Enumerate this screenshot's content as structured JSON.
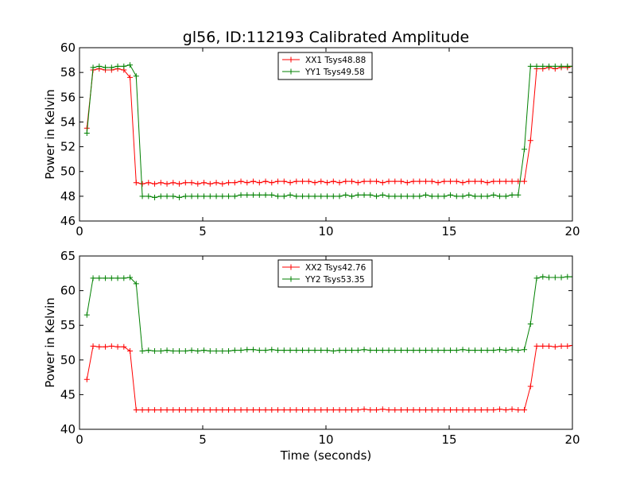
{
  "title": "gl56, ID:112193 Calibrated Amplitude",
  "colors": {
    "red": "#ff0000",
    "green": "#008000"
  },
  "chart_data": [
    {
      "type": "line",
      "xlabel": "",
      "ylabel": "Power in Kelvin",
      "xlim": [
        0,
        20
      ],
      "ylim": [
        46,
        60
      ],
      "xticks": [
        0,
        5,
        10,
        15,
        20
      ],
      "yticks": [
        46,
        48,
        50,
        52,
        54,
        56,
        58,
        60
      ],
      "grid": false,
      "legend_position": "top-center",
      "series": [
        {
          "name": "XX1 Tsys48.88",
          "color": "#ff0000",
          "x": [
            0.3,
            0.55,
            0.8,
            1.05,
            1.3,
            1.55,
            1.8,
            2.05,
            2.3,
            2.55,
            2.8,
            3.05,
            3.3,
            3.55,
            3.8,
            4.05,
            4.3,
            4.55,
            4.8,
            5.05,
            5.3,
            5.55,
            5.8,
            6.05,
            6.3,
            6.55,
            6.8,
            7.05,
            7.3,
            7.55,
            7.8,
            8.05,
            8.3,
            8.55,
            8.8,
            9.05,
            9.3,
            9.55,
            9.8,
            10.05,
            10.3,
            10.55,
            10.8,
            11.05,
            11.3,
            11.55,
            11.8,
            12.05,
            12.3,
            12.55,
            12.8,
            13.05,
            13.3,
            13.55,
            13.8,
            14.05,
            14.3,
            14.55,
            14.8,
            15.05,
            15.3,
            15.55,
            15.8,
            16.05,
            16.3,
            16.55,
            16.8,
            17.05,
            17.3,
            17.55,
            17.8,
            18.05,
            18.3,
            18.55,
            18.8,
            19.05,
            19.3,
            19.55,
            19.8,
            20.0
          ],
          "y": [
            53.5,
            58.2,
            58.3,
            58.2,
            58.2,
            58.3,
            58.2,
            57.6,
            49.1,
            49.0,
            49.1,
            49.0,
            49.1,
            49.0,
            49.1,
            49.0,
            49.1,
            49.1,
            49.0,
            49.1,
            49.0,
            49.1,
            49.0,
            49.1,
            49.1,
            49.2,
            49.1,
            49.2,
            49.1,
            49.2,
            49.1,
            49.2,
            49.2,
            49.1,
            49.2,
            49.2,
            49.2,
            49.1,
            49.2,
            49.1,
            49.2,
            49.1,
            49.2,
            49.2,
            49.1,
            49.2,
            49.2,
            49.2,
            49.1,
            49.2,
            49.2,
            49.2,
            49.1,
            49.2,
            49.2,
            49.2,
            49.2,
            49.1,
            49.2,
            49.2,
            49.2,
            49.1,
            49.2,
            49.2,
            49.2,
            49.1,
            49.2,
            49.2,
            49.2,
            49.2,
            49.2,
            49.2,
            52.5,
            58.3,
            58.3,
            58.4,
            58.3,
            58.4,
            58.4,
            58.5
          ]
        },
        {
          "name": "YY1 Tsys49.58",
          "color": "#008000",
          "x": [
            0.3,
            0.55,
            0.8,
            1.05,
            1.3,
            1.55,
            1.8,
            2.05,
            2.3,
            2.55,
            2.8,
            3.05,
            3.3,
            3.55,
            3.8,
            4.05,
            4.3,
            4.55,
            4.8,
            5.05,
            5.3,
            5.55,
            5.8,
            6.05,
            6.3,
            6.55,
            6.8,
            7.05,
            7.3,
            7.55,
            7.8,
            8.05,
            8.3,
            8.55,
            8.8,
            9.05,
            9.3,
            9.55,
            9.8,
            10.05,
            10.3,
            10.55,
            10.8,
            11.05,
            11.3,
            11.55,
            11.8,
            12.05,
            12.3,
            12.55,
            12.8,
            13.05,
            13.3,
            13.55,
            13.8,
            14.05,
            14.3,
            14.55,
            14.8,
            15.05,
            15.3,
            15.55,
            15.8,
            16.05,
            16.3,
            16.55,
            16.8,
            17.05,
            17.3,
            17.55,
            17.8,
            18.05,
            18.3,
            18.55,
            18.8,
            19.05,
            19.3,
            19.55,
            19.8,
            20.0
          ],
          "y": [
            53.1,
            58.4,
            58.5,
            58.4,
            58.4,
            58.5,
            58.5,
            58.6,
            57.7,
            48.0,
            48.0,
            47.9,
            48.0,
            48.0,
            48.0,
            47.9,
            48.0,
            48.0,
            48.0,
            48.0,
            48.0,
            48.0,
            48.0,
            48.0,
            48.0,
            48.1,
            48.1,
            48.1,
            48.1,
            48.1,
            48.1,
            48.0,
            48.0,
            48.1,
            48.0,
            48.0,
            48.0,
            48.0,
            48.0,
            48.0,
            48.0,
            48.0,
            48.1,
            48.0,
            48.1,
            48.1,
            48.1,
            48.0,
            48.1,
            48.0,
            48.0,
            48.0,
            48.0,
            48.0,
            48.0,
            48.1,
            48.0,
            48.0,
            48.0,
            48.1,
            48.0,
            48.0,
            48.1,
            48.0,
            48.0,
            48.0,
            48.1,
            48.0,
            48.0,
            48.1,
            48.1,
            51.8,
            58.5,
            58.5,
            58.5,
            58.5,
            58.5,
            58.5,
            58.5,
            58.5
          ]
        }
      ]
    },
    {
      "type": "line",
      "xlabel": "Time (seconds)",
      "ylabel": "Power in Kelvin",
      "xlim": [
        0,
        20
      ],
      "ylim": [
        40,
        65
      ],
      "xticks": [
        0,
        5,
        10,
        15,
        20
      ],
      "yticks": [
        40,
        45,
        50,
        55,
        60,
        65
      ],
      "grid": false,
      "legend_position": "top-center",
      "series": [
        {
          "name": "XX2 Tsys42.76",
          "color": "#ff0000",
          "x": [
            0.3,
            0.55,
            0.8,
            1.05,
            1.3,
            1.55,
            1.8,
            2.05,
            2.3,
            2.55,
            2.8,
            3.05,
            3.3,
            3.55,
            3.8,
            4.05,
            4.3,
            4.55,
            4.8,
            5.05,
            5.3,
            5.55,
            5.8,
            6.05,
            6.3,
            6.55,
            6.8,
            7.05,
            7.3,
            7.55,
            7.8,
            8.05,
            8.3,
            8.55,
            8.8,
            9.05,
            9.3,
            9.55,
            9.8,
            10.05,
            10.3,
            10.55,
            10.8,
            11.05,
            11.3,
            11.55,
            11.8,
            12.05,
            12.3,
            12.55,
            12.8,
            13.05,
            13.3,
            13.55,
            13.8,
            14.05,
            14.3,
            14.55,
            14.8,
            15.05,
            15.3,
            15.55,
            15.8,
            16.05,
            16.3,
            16.55,
            16.8,
            17.05,
            17.3,
            17.55,
            17.8,
            18.05,
            18.3,
            18.55,
            18.8,
            19.05,
            19.3,
            19.55,
            19.8,
            20.0
          ],
          "y": [
            47.2,
            52.0,
            51.9,
            51.9,
            52.0,
            51.9,
            51.9,
            51.3,
            42.8,
            42.8,
            42.8,
            42.8,
            42.8,
            42.8,
            42.8,
            42.8,
            42.8,
            42.8,
            42.8,
            42.8,
            42.8,
            42.8,
            42.8,
            42.8,
            42.8,
            42.8,
            42.8,
            42.8,
            42.8,
            42.8,
            42.8,
            42.8,
            42.8,
            42.8,
            42.8,
            42.8,
            42.8,
            42.8,
            42.8,
            42.8,
            42.8,
            42.8,
            42.8,
            42.8,
            42.8,
            42.9,
            42.8,
            42.8,
            42.9,
            42.8,
            42.8,
            42.8,
            42.8,
            42.8,
            42.8,
            42.8,
            42.8,
            42.8,
            42.8,
            42.8,
            42.8,
            42.8,
            42.8,
            42.8,
            42.8,
            42.8,
            42.8,
            42.9,
            42.8,
            42.9,
            42.8,
            42.8,
            46.2,
            52.0,
            52.0,
            52.0,
            51.9,
            52.0,
            52.0,
            52.1
          ]
        },
        {
          "name": "YY2 Tsys53.35",
          "color": "#008000",
          "x": [
            0.3,
            0.55,
            0.8,
            1.05,
            1.3,
            1.55,
            1.8,
            2.05,
            2.3,
            2.55,
            2.8,
            3.05,
            3.3,
            3.55,
            3.8,
            4.05,
            4.3,
            4.55,
            4.8,
            5.05,
            5.3,
            5.55,
            5.8,
            6.05,
            6.3,
            6.55,
            6.8,
            7.05,
            7.3,
            7.55,
            7.8,
            8.05,
            8.3,
            8.55,
            8.8,
            9.05,
            9.3,
            9.55,
            9.8,
            10.05,
            10.3,
            10.55,
            10.8,
            11.05,
            11.3,
            11.55,
            11.8,
            12.05,
            12.3,
            12.55,
            12.8,
            13.05,
            13.3,
            13.55,
            13.8,
            14.05,
            14.3,
            14.55,
            14.8,
            15.05,
            15.3,
            15.55,
            15.8,
            16.05,
            16.3,
            16.55,
            16.8,
            17.05,
            17.3,
            17.55,
            17.8,
            18.05,
            18.3,
            18.55,
            18.8,
            19.05,
            19.3,
            19.55,
            19.8,
            20.0
          ],
          "y": [
            56.5,
            61.8,
            61.8,
            61.8,
            61.8,
            61.8,
            61.8,
            61.9,
            61.0,
            51.3,
            51.4,
            51.3,
            51.3,
            51.4,
            51.3,
            51.3,
            51.3,
            51.4,
            51.3,
            51.4,
            51.3,
            51.3,
            51.3,
            51.3,
            51.4,
            51.4,
            51.5,
            51.5,
            51.4,
            51.4,
            51.5,
            51.4,
            51.4,
            51.4,
            51.4,
            51.4,
            51.4,
            51.4,
            51.4,
            51.4,
            51.3,
            51.4,
            51.4,
            51.4,
            51.4,
            51.5,
            51.4,
            51.4,
            51.4,
            51.4,
            51.4,
            51.4,
            51.4,
            51.4,
            51.4,
            51.4,
            51.4,
            51.4,
            51.4,
            51.4,
            51.4,
            51.5,
            51.4,
            51.4,
            51.4,
            51.4,
            51.4,
            51.5,
            51.4,
            51.5,
            51.4,
            51.5,
            55.2,
            61.8,
            62.0,
            61.9,
            61.9,
            61.9,
            62.0,
            62.0
          ]
        }
      ]
    }
  ]
}
